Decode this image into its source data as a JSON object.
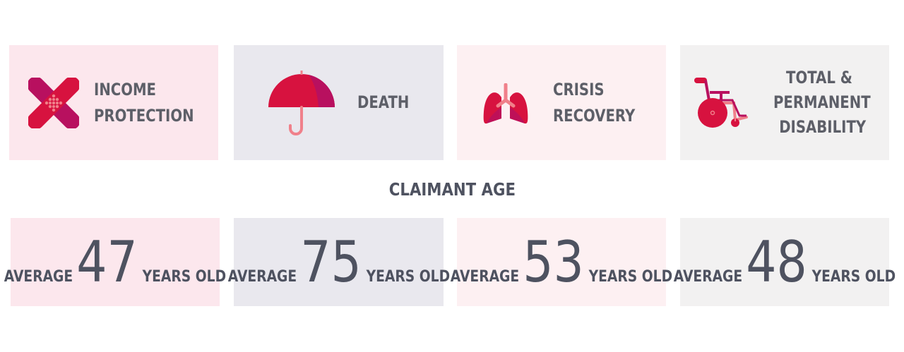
{
  "categories": [
    {
      "lines": [
        "Income",
        "Protection"
      ],
      "icon": "bandage-icon"
    },
    {
      "lines": [
        "Death"
      ],
      "icon": "umbrella-icon"
    },
    {
      "lines": [
        "Crisis",
        "Recovery"
      ],
      "icon": "lungs-icon"
    },
    {
      "lines": [
        "Total &",
        "Permanent",
        "Disability"
      ],
      "icon": "wheelchair-icon"
    }
  ],
  "heading": "CLAIMANT AGE",
  "ages": [
    {
      "prefix": "AVERAGE",
      "value": "47",
      "suffix": "YEARS OLD"
    },
    {
      "prefix": "AVERAGE",
      "value": "75",
      "suffix": "YEARS OLD"
    },
    {
      "prefix": "AVERAGE",
      "value": "53",
      "suffix": "YEARS OLD"
    },
    {
      "prefix": "AVERAGE",
      "value": "48",
      "suffix": "YEARS OLD"
    }
  ],
  "colors": {
    "red": "#d7123f",
    "magenta": "#b8105f",
    "salmon": "#f0808a",
    "text": "#5d5f68"
  }
}
